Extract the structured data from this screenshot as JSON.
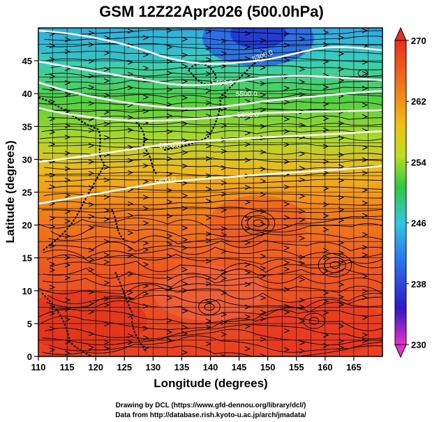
{
  "title": "GSM 12Z22Apr2026 (500.0hPa)",
  "x_axis": {
    "label": "Longitude (degrees)",
    "min": 110,
    "max": 170,
    "ticks": [
      "110",
      "115",
      "120",
      "125",
      "130",
      "135",
      "140",
      "145",
      "150",
      "155",
      "160",
      "165"
    ]
  },
  "y_axis": {
    "label": "Latitude  (degrees)",
    "min": 0,
    "max": 50,
    "ticks": [
      "0",
      "5",
      "10",
      "15",
      "20",
      "25",
      "30",
      "35",
      "40",
      "45"
    ]
  },
  "colorbar": {
    "min": 230,
    "max": 270,
    "ticks": [
      "230",
      "238",
      "246",
      "254",
      "262",
      "270"
    ],
    "stops": [
      "#e830c8",
      "#2020c8",
      "#2878f0",
      "#38c8e0",
      "#30c840",
      "#c8e020",
      "#f0b010",
      "#f07010",
      "#e83020"
    ]
  },
  "contour_labels": [
    "5300.0",
    "5400.0",
    "5500.0",
    "5600.0",
    "5700.0",
    "5800.0"
  ],
  "credits": {
    "line1": "Drawing by DCL (https://www.gfd-dennou.org/library/dcl/)",
    "line2": "Data from http://database.rish.kyoto-u.ac.jp/arch/jmadata/"
  }
}
